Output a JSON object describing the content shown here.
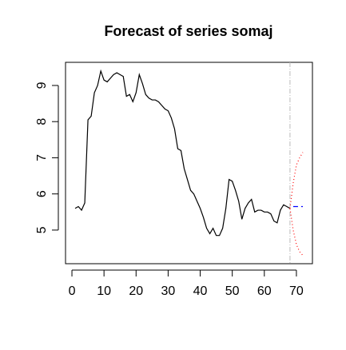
{
  "chart_data": {
    "type": "line",
    "title": "Forecast of series somaj",
    "xlim": [
      -2,
      75
    ],
    "ylim": [
      4.07,
      9.64
    ],
    "xticks": [
      0,
      10,
      20,
      30,
      40,
      50,
      60,
      70
    ],
    "yticks": [
      5,
      6,
      7,
      8,
      9
    ],
    "vline": 68,
    "series": [
      {
        "color": "#000000",
        "dash": "none",
        "x": [
          1,
          2,
          3,
          4,
          5,
          6,
          7,
          8,
          9,
          10,
          11,
          12,
          13,
          14,
          15,
          16,
          17,
          18,
          19,
          20,
          21,
          22,
          23,
          24,
          25,
          26,
          27,
          28,
          29,
          30,
          31,
          32,
          33,
          34,
          35,
          36,
          37,
          38,
          39,
          40,
          41,
          42,
          43,
          44,
          45,
          46,
          47,
          48,
          49,
          50,
          51,
          52,
          53,
          54,
          55,
          56,
          57,
          58,
          59,
          60,
          61,
          62,
          63,
          64,
          65,
          66,
          67,
          68
        ],
        "values": [
          5.6,
          5.65,
          5.55,
          5.75,
          8.05,
          8.15,
          8.8,
          9.0,
          9.4,
          9.15,
          9.1,
          9.2,
          9.3,
          9.35,
          9.3,
          9.25,
          8.7,
          8.75,
          8.55,
          8.8,
          9.3,
          9.05,
          8.75,
          8.65,
          8.6,
          8.6,
          8.55,
          8.45,
          8.35,
          8.3,
          8.1,
          7.8,
          7.25,
          7.2,
          6.7,
          6.4,
          6.1,
          6.0,
          5.8,
          5.6,
          5.35,
          5.05,
          4.9,
          5.05,
          4.85,
          4.85,
          5.05,
          5.6,
          6.4,
          6.35,
          6.1,
          5.8,
          5.3,
          5.6,
          5.75,
          5.85,
          5.5,
          5.55,
          5.55,
          5.5,
          5.5,
          5.45,
          5.25,
          5.2,
          5.55,
          5.7,
          5.65,
          5.6
        ]
      },
      {
        "color": "#0000ff",
        "dash": "6 4",
        "x": [
          69,
          70,
          71,
          72
        ],
        "values": [
          5.65,
          5.65,
          5.65,
          5.65
        ]
      },
      {
        "color": "#ff0000",
        "dash": "1 3",
        "x": [
          68,
          69,
          70,
          71,
          72
        ],
        "values": [
          5.6,
          6.3,
          6.8,
          7.0,
          7.15
        ]
      },
      {
        "color": "#ff0000",
        "dash": "1 3",
        "x": [
          68,
          69,
          70,
          71,
          72
        ],
        "values": [
          5.6,
          5.0,
          4.6,
          4.4,
          4.3
        ]
      }
    ]
  }
}
